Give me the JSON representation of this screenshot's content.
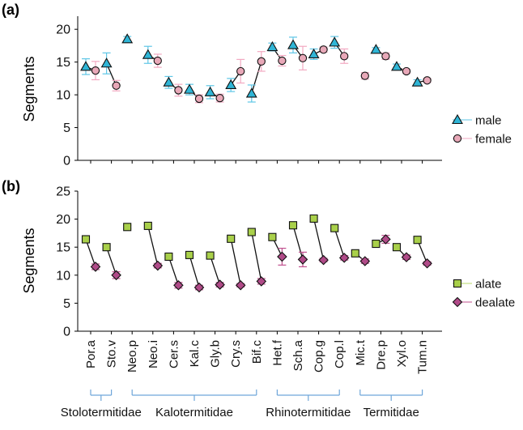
{
  "chart_data": [
    {
      "type": "scatter",
      "panel_label": "(a)",
      "ylabel": "Segments",
      "ylim": [
        0,
        22
      ],
      "yticks": [
        0,
        5,
        10,
        15,
        20
      ],
      "grid": false,
      "legend_position": "right",
      "categories": [
        "Por.a",
        "Sto.v",
        "Neo.p",
        "Neo.i",
        "Cer.s",
        "Kal.c",
        "Gly.b",
        "Cry.s",
        "Bif.c",
        "Het.f",
        "Sch.a",
        "Cop.g",
        "Cop.l",
        "Mic.t",
        "Dre.p",
        "Xyl.o",
        "Tum.n"
      ],
      "series": [
        {
          "name": "male",
          "marker": "triangle",
          "color": "#2fb5d6",
          "error_color": "#5ec6e6",
          "values": [
            14.3,
            14.8,
            18.5,
            16.1,
            11.9,
            10.8,
            10.4,
            11.5,
            10.2,
            17.3,
            17.6,
            16.2,
            18.0,
            null,
            16.9,
            14.3,
            11.9
          ],
          "errors": [
            1.2,
            1.6,
            0.4,
            1.3,
            0.9,
            0.8,
            1.0,
            1.0,
            1.3,
            0.6,
            1.2,
            0.8,
            0.9,
            null,
            0.3,
            0.4,
            0.4
          ]
        },
        {
          "name": "female",
          "marker": "circle",
          "color": "#e8a8b8",
          "error_color": "#f2a9c1",
          "values": [
            13.7,
            11.4,
            null,
            15.2,
            10.7,
            9.4,
            9.5,
            13.6,
            15.1,
            15.2,
            15.6,
            16.9,
            15.9,
            12.9,
            15.9,
            13.6,
            12.2
          ],
          "errors": [
            1.4,
            0.8,
            null,
            1.0,
            0.9,
            0.6,
            0.6,
            1.8,
            1.5,
            0.8,
            1.8,
            0.4,
            1.1,
            0.5,
            0.5,
            0.3,
            0.3
          ]
        }
      ]
    },
    {
      "type": "scatter",
      "panel_label": "(b)",
      "ylabel": "Segments",
      "ylim": [
        0,
        25
      ],
      "yticks": [
        0,
        5,
        10,
        15,
        20,
        25
      ],
      "grid": false,
      "legend_position": "right",
      "categories": [
        "Por.a",
        "Sto.v",
        "Neo.p",
        "Neo.i",
        "Cer.s",
        "Kal.c",
        "Gly.b",
        "Cry.s",
        "Bif.c",
        "Het.f",
        "Sch.a",
        "Cop.g",
        "Cop.l",
        "Mic.t",
        "Dre.p",
        "Xyl.o",
        "Tum.n"
      ],
      "series": [
        {
          "name": "alate",
          "marker": "square",
          "color": "#a9d04a",
          "error_color": "#b9d86a",
          "values": [
            16.4,
            15.0,
            18.6,
            18.8,
            13.3,
            13.6,
            13.5,
            16.5,
            17.7,
            16.8,
            18.9,
            20.1,
            18.4,
            13.9,
            15.6,
            15.0,
            16.3
          ],
          "errors": [
            0.3,
            0.3,
            0.3,
            0.3,
            0.3,
            0.3,
            0.3,
            0.3,
            0.3,
            0.3,
            0.3,
            0.3,
            0.3,
            0.3,
            0.3,
            0.3,
            0.3
          ]
        },
        {
          "name": "dealate",
          "marker": "diamond",
          "color": "#b04a88",
          "error_color": "#c0508e",
          "values": [
            11.5,
            10.0,
            null,
            11.7,
            8.2,
            7.8,
            8.3,
            8.2,
            8.9,
            13.3,
            12.8,
            12.7,
            13.1,
            12.5,
            16.4,
            13.2,
            12.1
          ],
          "errors": [
            0.5,
            0.6,
            null,
            0.4,
            0.5,
            0.4,
            0.4,
            0.3,
            0.5,
            1.5,
            1.3,
            0.3,
            0.4,
            0.4,
            0.7,
            0.4,
            0.3
          ]
        }
      ]
    }
  ],
  "families": [
    {
      "name": "Stolotermitidae",
      "from": 0,
      "to": 1
    },
    {
      "name": "Kalotermitidae",
      "from": 2,
      "to": 8
    },
    {
      "name": "Rhinotermitidae",
      "from": 9,
      "to": 12
    },
    {
      "name": "Termitidae",
      "from": 13,
      "to": 16
    }
  ],
  "colors": {
    "bracket": "#6fa6d9",
    "connector": "#111111",
    "axis": "#000000"
  }
}
